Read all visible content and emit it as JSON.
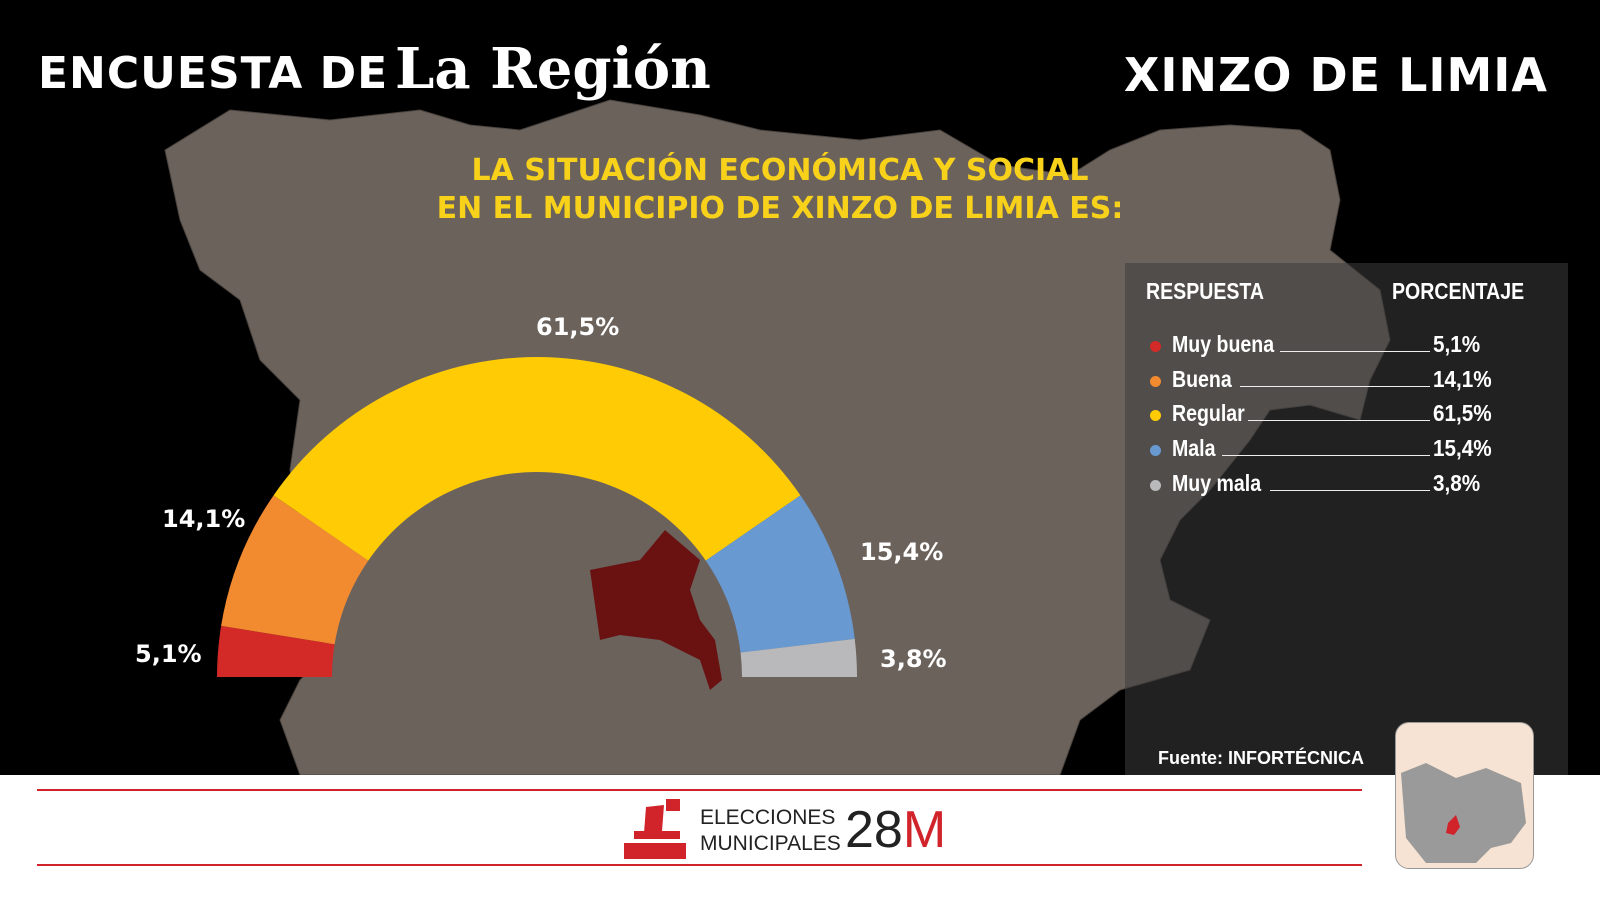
{
  "header": {
    "prefix": "ENCUESTA DE",
    "logo": "La Región",
    "town": "XINZO DE LIMIA"
  },
  "question": {
    "line1": "LA SITUACIÓN ECONÓMICA Y SOCIAL",
    "line2": "EN EL MUNICIPIO DE XINZO DE LIMIA ES:"
  },
  "legend": {
    "col_response": "RESPUESTA",
    "col_percent": "PORCENTAJE"
  },
  "source": "Fuente: INFORTÉCNICA",
  "footer": {
    "line1": "ELECCIONES",
    "line2": "MUNICIPALES",
    "date_num": "28",
    "date_letter": "M"
  },
  "chart_data": {
    "type": "pie",
    "variant": "half-donut",
    "categories": [
      "Muy buena",
      "Buena",
      "Regular",
      "Mala",
      "Muy mala"
    ],
    "values": [
      5.1,
      14.1,
      61.5,
      15.4,
      3.8
    ],
    "labels": [
      "5,1%",
      "14,1%",
      "61,5%",
      "15,4%",
      "3,8%"
    ],
    "colors": [
      "#d32a27",
      "#f28a30",
      "#fecb05",
      "#6899d1",
      "#b9b9bb"
    ],
    "legend": "right"
  }
}
